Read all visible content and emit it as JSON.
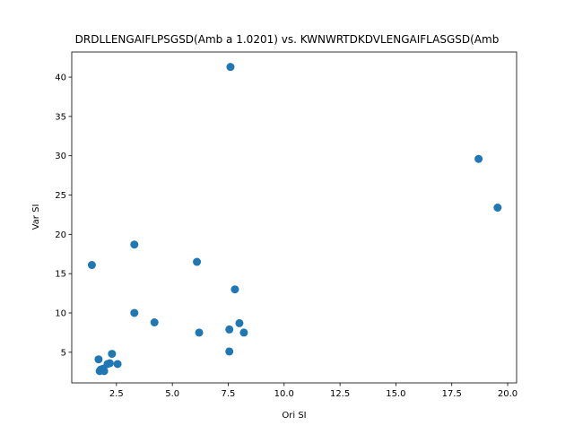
{
  "chart_data": {
    "type": "scatter",
    "title": "DRDLLENGAIFLPSGSD(Amb a 1.0201) vs. KWNWRTDKDVLENGAIFLASGSD(Amb",
    "xlabel": "Ori SI",
    "ylabel": "Var SI",
    "xlim": [
      0.5,
      20.4
    ],
    "ylim": [
      1.1,
      43.2
    ],
    "xticks": [
      "2.5",
      "5.0",
      "7.5",
      "10.0",
      "12.5",
      "15.0",
      "17.5",
      "20.0"
    ],
    "yticks": [
      "5",
      "10",
      "15",
      "20",
      "25",
      "30",
      "35",
      "40"
    ],
    "grid": false,
    "legend": "none",
    "marker_color": "#1f77b4",
    "points": [
      {
        "x": 7.6,
        "y": 41.3
      },
      {
        "x": 18.7,
        "y": 29.6
      },
      {
        "x": 19.55,
        "y": 23.4
      },
      {
        "x": 3.3,
        "y": 18.7
      },
      {
        "x": 6.1,
        "y": 16.5
      },
      {
        "x": 1.4,
        "y": 16.1
      },
      {
        "x": 7.8,
        "y": 13.0
      },
      {
        "x": 3.3,
        "y": 10.0
      },
      {
        "x": 4.2,
        "y": 8.8
      },
      {
        "x": 8.0,
        "y": 8.7
      },
      {
        "x": 7.55,
        "y": 7.9
      },
      {
        "x": 6.2,
        "y": 7.5
      },
      {
        "x": 8.2,
        "y": 7.5
      },
      {
        "x": 7.55,
        "y": 5.1
      },
      {
        "x": 2.3,
        "y": 4.8
      },
      {
        "x": 1.7,
        "y": 4.1
      },
      {
        "x": 2.2,
        "y": 3.6
      },
      {
        "x": 2.1,
        "y": 3.5
      },
      {
        "x": 2.55,
        "y": 3.5
      },
      {
        "x": 1.9,
        "y": 2.9
      },
      {
        "x": 1.8,
        "y": 2.8
      },
      {
        "x": 1.75,
        "y": 2.6
      },
      {
        "x": 1.95,
        "y": 2.6
      }
    ]
  }
}
